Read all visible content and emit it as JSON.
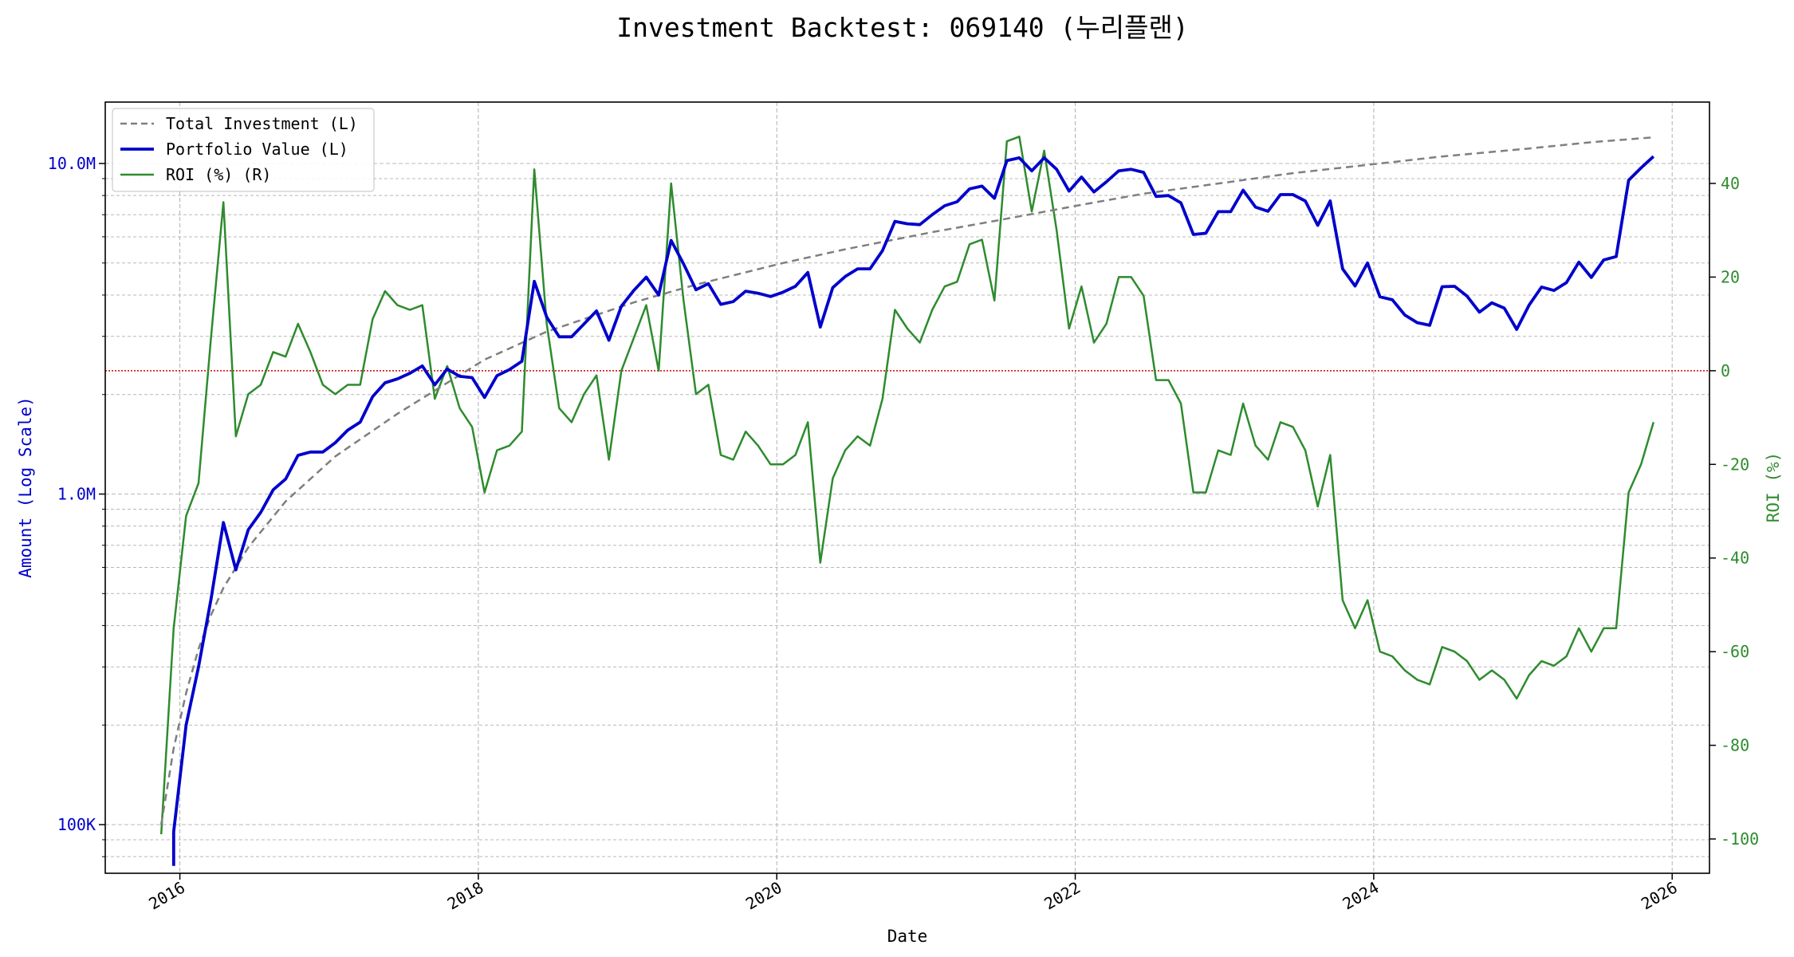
{
  "chart_data": {
    "type": "line",
    "title": "Investment Backtest: 069140 (누리플랜)",
    "xlabel": "Date",
    "ylabel_left": "Amount (Log Scale)",
    "ylabel_right": "ROI (%)",
    "x_ticks": [
      "2016",
      "2018",
      "2020",
      "2022",
      "2024",
      "2026"
    ],
    "y_left_scale": "log",
    "y_left_ticks": [
      "100K",
      "1.0M",
      "10.0M"
    ],
    "y_right_ticks": [
      "-100",
      "-80",
      "-60",
      "-40",
      "-20",
      "0",
      "20",
      "40"
    ],
    "ylim_right": [
      -100,
      55
    ],
    "xlim": [
      "2015-07-01",
      "2026-04-01"
    ],
    "grid": true,
    "legend_position": "top-left",
    "reference_line": {
      "axis": "right",
      "value": 0,
      "color": "#cc0000",
      "style": "dotted"
    },
    "colors": {
      "total_investment": "#7f7f7f",
      "portfolio_value": "#0000cc",
      "roi": "#2e8b2e",
      "left_axis": "#0000cc",
      "right_axis": "#2e8b2e"
    },
    "series": [
      {
        "name": "Total Investment (L)",
        "axis": "left",
        "style": "dashed",
        "points": [
          [
            "2015-11",
            100000
          ],
          [
            "2015-12",
            170000
          ],
          [
            "2016-01",
            250000
          ],
          [
            "2016-02",
            340000
          ],
          [
            "2016-03",
            430000
          ],
          [
            "2016-04",
            520000
          ],
          [
            "2016-06",
            690000
          ],
          [
            "2016-09",
            950000
          ],
          [
            "2017-01",
            1300000
          ],
          [
            "2017-06",
            1750000
          ],
          [
            "2018-01",
            2550000
          ],
          [
            "2018-06",
            3100000
          ],
          [
            "2019-01",
            3800000
          ],
          [
            "2019-06",
            4300000
          ],
          [
            "2020-01",
            5000000
          ],
          [
            "2020-06",
            5500000
          ],
          [
            "2021-01",
            6200000
          ],
          [
            "2021-06",
            6700000
          ],
          [
            "2022-01",
            7500000
          ],
          [
            "2022-06",
            8100000
          ],
          [
            "2023-01",
            8800000
          ],
          [
            "2023-06",
            9350000
          ],
          [
            "2024-01",
            10000000
          ],
          [
            "2024-06",
            10500000
          ],
          [
            "2025-01",
            11100000
          ],
          [
            "2025-06",
            11600000
          ],
          [
            "2025-11",
            12000000
          ]
        ]
      },
      {
        "name": "Portfolio Value (L)",
        "axis": "left",
        "style": "solid",
        "points": [
          [
            "2015-12",
            75000
          ],
          [
            "2015-12",
            95000
          ],
          [
            "2016-01",
            200000
          ],
          [
            "2016-02",
            300000
          ],
          [
            "2016-03",
            480000
          ],
          [
            "2016-04",
            820000
          ],
          [
            "2016-05",
            590000
          ],
          [
            "2016-06",
            780000
          ],
          [
            "2016-07",
            880000
          ],
          [
            "2016-08",
            1030000
          ],
          [
            "2016-09",
            1110000
          ],
          [
            "2016-10",
            1310000
          ],
          [
            "2016-11",
            1340000
          ],
          [
            "2016-12",
            1340000
          ],
          [
            "2017-01",
            1430000
          ],
          [
            "2017-02",
            1560000
          ],
          [
            "2017-03",
            1650000
          ],
          [
            "2017-04",
            1970000
          ],
          [
            "2017-05",
            2170000
          ],
          [
            "2017-06",
            2230000
          ],
          [
            "2017-07",
            2320000
          ],
          [
            "2017-08",
            2440000
          ],
          [
            "2017-09",
            2140000
          ],
          [
            "2017-10",
            2390000
          ],
          [
            "2017-11",
            2270000
          ],
          [
            "2017-12",
            2250000
          ],
          [
            "2018-01",
            1960000
          ],
          [
            "2018-02",
            2280000
          ],
          [
            "2018-03",
            2380000
          ],
          [
            "2018-04",
            2520000
          ],
          [
            "2018-05",
            4400000
          ],
          [
            "2018-06",
            3430000
          ],
          [
            "2018-07",
            2990000
          ],
          [
            "2018-08",
            2990000
          ],
          [
            "2018-09",
            3270000
          ],
          [
            "2018-10",
            3580000
          ],
          [
            "2018-11",
            2920000
          ],
          [
            "2018-12",
            3700000
          ],
          [
            "2019-01",
            4130000
          ],
          [
            "2019-02",
            4530000
          ],
          [
            "2019-03",
            4000000
          ],
          [
            "2019-04",
            5850000
          ],
          [
            "2019-05",
            4970000
          ],
          [
            "2019-06",
            4150000
          ],
          [
            "2019-07",
            4330000
          ],
          [
            "2019-08",
            3750000
          ],
          [
            "2019-09",
            3820000
          ],
          [
            "2019-10",
            4110000
          ],
          [
            "2019-11",
            4050000
          ],
          [
            "2019-12",
            3960000
          ],
          [
            "2020-01",
            4080000
          ],
          [
            "2020-02",
            4250000
          ],
          [
            "2020-03",
            4680000
          ],
          [
            "2020-04",
            3200000
          ],
          [
            "2020-05",
            4210000
          ],
          [
            "2020-06",
            4550000
          ],
          [
            "2020-07",
            4800000
          ],
          [
            "2020-08",
            4800000
          ],
          [
            "2020-09",
            5450000
          ],
          [
            "2020-10",
            6680000
          ],
          [
            "2020-11",
            6570000
          ],
          [
            "2020-12",
            6530000
          ],
          [
            "2021-01",
            7000000
          ],
          [
            "2021-02",
            7450000
          ],
          [
            "2021-03",
            7660000
          ],
          [
            "2021-04",
            8380000
          ],
          [
            "2021-05",
            8540000
          ],
          [
            "2021-06",
            7850000
          ],
          [
            "2021-07",
            10200000
          ],
          [
            "2021-08",
            10400000
          ],
          [
            "2021-09",
            9500000
          ],
          [
            "2021-10",
            10400000
          ],
          [
            "2021-11",
            9600000
          ],
          [
            "2021-12",
            8250000
          ],
          [
            "2022-01",
            9100000
          ],
          [
            "2022-02",
            8200000
          ],
          [
            "2022-03",
            8800000
          ],
          [
            "2022-04",
            9500000
          ],
          [
            "2022-05",
            9600000
          ],
          [
            "2022-06",
            9400000
          ],
          [
            "2022-07",
            7950000
          ],
          [
            "2022-08",
            8000000
          ],
          [
            "2022-09",
            7600000
          ],
          [
            "2022-10",
            6100000
          ],
          [
            "2022-11",
            6150000
          ],
          [
            "2022-12",
            7150000
          ],
          [
            "2023-01",
            7150000
          ],
          [
            "2023-02",
            8300000
          ],
          [
            "2023-03",
            7380000
          ],
          [
            "2023-04",
            7170000
          ],
          [
            "2023-05",
            8050000
          ],
          [
            "2023-06",
            8050000
          ],
          [
            "2023-07",
            7700000
          ],
          [
            "2023-08",
            6500000
          ],
          [
            "2023-09",
            7700000
          ],
          [
            "2023-10",
            4800000
          ],
          [
            "2023-11",
            4260000
          ],
          [
            "2023-12",
            5000000
          ],
          [
            "2024-01",
            3950000
          ],
          [
            "2024-02",
            3870000
          ],
          [
            "2024-03",
            3480000
          ],
          [
            "2024-04",
            3300000
          ],
          [
            "2024-05",
            3240000
          ],
          [
            "2024-06",
            4240000
          ],
          [
            "2024-07",
            4250000
          ],
          [
            "2024-08",
            3970000
          ],
          [
            "2024-09",
            3550000
          ],
          [
            "2024-10",
            3790000
          ],
          [
            "2024-11",
            3650000
          ],
          [
            "2024-12",
            3150000
          ],
          [
            "2025-01",
            3730000
          ],
          [
            "2025-02",
            4230000
          ],
          [
            "2025-03",
            4130000
          ],
          [
            "2025-04",
            4360000
          ],
          [
            "2025-05",
            5030000
          ],
          [
            "2025-06",
            4520000
          ],
          [
            "2025-07",
            5110000
          ],
          [
            "2025-08",
            5230000
          ],
          [
            "2025-09",
            8900000
          ],
          [
            "2025-10",
            9700000
          ],
          [
            "2025-11",
            10500000
          ]
        ]
      },
      {
        "name": "ROI (%) (R)",
        "axis": "right",
        "style": "solid",
        "points": [
          [
            "2015-11",
            -99
          ],
          [
            "2015-12",
            -55
          ],
          [
            "2016-01",
            -31
          ],
          [
            "2016-02",
            -24
          ],
          [
            "2016-03",
            7
          ],
          [
            "2016-04",
            36
          ],
          [
            "2016-05",
            -14
          ],
          [
            "2016-06",
            -5
          ],
          [
            "2016-07",
            -3
          ],
          [
            "2016-08",
            4
          ],
          [
            "2016-09",
            3
          ],
          [
            "2016-10",
            10
          ],
          [
            "2016-11",
            4
          ],
          [
            "2016-12",
            -3
          ],
          [
            "2017-01",
            -5
          ],
          [
            "2017-02",
            -3
          ],
          [
            "2017-03",
            -3
          ],
          [
            "2017-04",
            11
          ],
          [
            "2017-05",
            17
          ],
          [
            "2017-06",
            14
          ],
          [
            "2017-07",
            13
          ],
          [
            "2017-08",
            14
          ],
          [
            "2017-09",
            -6
          ],
          [
            "2017-10",
            1
          ],
          [
            "2017-11",
            -8
          ],
          [
            "2017-12",
            -12
          ],
          [
            "2018-01",
            -26
          ],
          [
            "2018-02",
            -17
          ],
          [
            "2018-03",
            -16
          ],
          [
            "2018-04",
            -13
          ],
          [
            "2018-05",
            43
          ],
          [
            "2018-06",
            10
          ],
          [
            "2018-07",
            -8
          ],
          [
            "2018-08",
            -11
          ],
          [
            "2018-09",
            -5
          ],
          [
            "2018-10",
            -1
          ],
          [
            "2018-11",
            -19
          ],
          [
            "2018-12",
            0
          ],
          [
            "2019-01",
            7
          ],
          [
            "2019-02",
            14
          ],
          [
            "2019-03",
            0
          ],
          [
            "2019-04",
            40
          ],
          [
            "2019-05",
            15
          ],
          [
            "2019-06",
            -5
          ],
          [
            "2019-07",
            -3
          ],
          [
            "2019-08",
            -18
          ],
          [
            "2019-09",
            -19
          ],
          [
            "2019-10",
            -13
          ],
          [
            "2019-11",
            -16
          ],
          [
            "2019-12",
            -20
          ],
          [
            "2020-01",
            -20
          ],
          [
            "2020-02",
            -18
          ],
          [
            "2020-03",
            -11
          ],
          [
            "2020-04",
            -41
          ],
          [
            "2020-05",
            -23
          ],
          [
            "2020-06",
            -17
          ],
          [
            "2020-07",
            -14
          ],
          [
            "2020-08",
            -16
          ],
          [
            "2020-09",
            -6
          ],
          [
            "2020-10",
            13
          ],
          [
            "2020-11",
            9
          ],
          [
            "2020-12",
            6
          ],
          [
            "2021-01",
            13
          ],
          [
            "2021-02",
            18
          ],
          [
            "2021-03",
            19
          ],
          [
            "2021-04",
            27
          ],
          [
            "2021-05",
            28
          ],
          [
            "2021-06",
            15
          ],
          [
            "2021-07",
            49
          ],
          [
            "2021-08",
            50
          ],
          [
            "2021-09",
            34
          ],
          [
            "2021-10",
            47
          ],
          [
            "2021-11",
            30
          ],
          [
            "2021-12",
            9
          ],
          [
            "2022-01",
            18
          ],
          [
            "2022-02",
            6
          ],
          [
            "2022-03",
            10
          ],
          [
            "2022-04",
            20
          ],
          [
            "2022-05",
            20
          ],
          [
            "2022-06",
            16
          ],
          [
            "2022-07",
            -2
          ],
          [
            "2022-08",
            -2
          ],
          [
            "2022-09",
            -7
          ],
          [
            "2022-10",
            -26
          ],
          [
            "2022-11",
            -26
          ],
          [
            "2022-12",
            -17
          ],
          [
            "2023-01",
            -18
          ],
          [
            "2023-02",
            -7
          ],
          [
            "2023-03",
            -16
          ],
          [
            "2023-04",
            -19
          ],
          [
            "2023-05",
            -11
          ],
          [
            "2023-06",
            -12
          ],
          [
            "2023-07",
            -17
          ],
          [
            "2023-08",
            -29
          ],
          [
            "2023-09",
            -18
          ],
          [
            "2023-10",
            -49
          ],
          [
            "2023-11",
            -55
          ],
          [
            "2023-12",
            -49
          ],
          [
            "2024-01",
            -60
          ],
          [
            "2024-02",
            -61
          ],
          [
            "2024-03",
            -64
          ],
          [
            "2024-04",
            -66
          ],
          [
            "2024-05",
            -67
          ],
          [
            "2024-06",
            -59
          ],
          [
            "2024-07",
            -60
          ],
          [
            "2024-08",
            -62
          ],
          [
            "2024-09",
            -66
          ],
          [
            "2024-10",
            -64
          ],
          [
            "2024-11",
            -66
          ],
          [
            "2024-12",
            -70
          ],
          [
            "2025-01",
            -65
          ],
          [
            "2025-02",
            -62
          ],
          [
            "2025-03",
            -63
          ],
          [
            "2025-04",
            -61
          ],
          [
            "2025-05",
            -55
          ],
          [
            "2025-06",
            -60
          ],
          [
            "2025-07",
            -55
          ],
          [
            "2025-08",
            -55
          ],
          [
            "2025-09",
            -26
          ],
          [
            "2025-10",
            -20
          ],
          [
            "2025-11",
            -11
          ]
        ]
      }
    ]
  }
}
